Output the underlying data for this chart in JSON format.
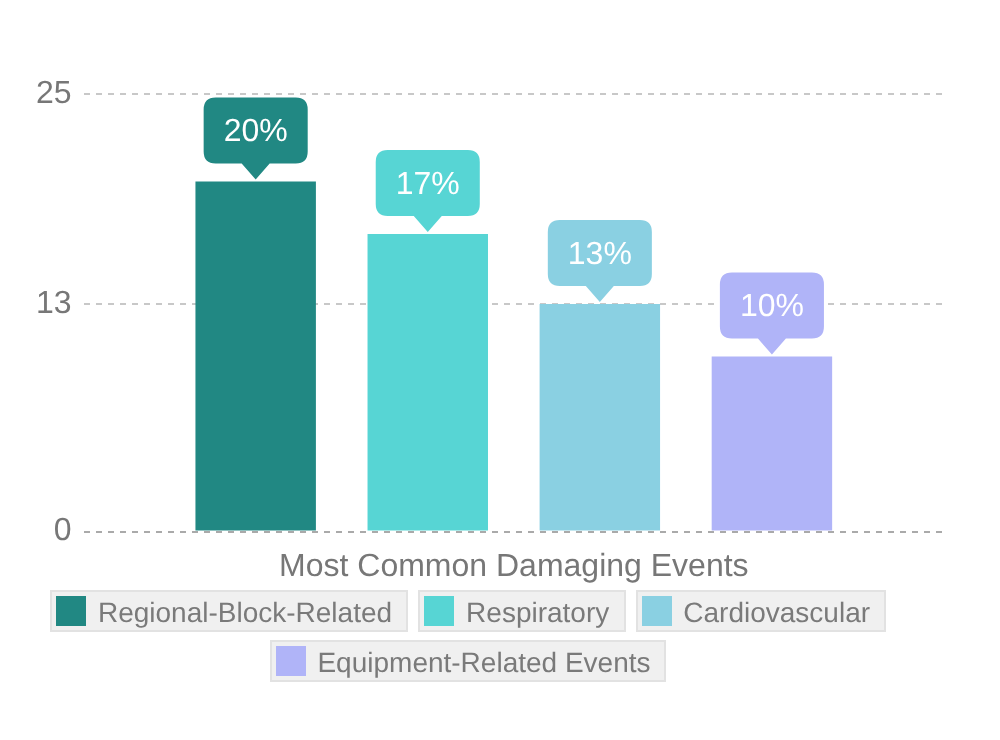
{
  "chart_data": {
    "type": "bar",
    "xlabel": "Most Common Damaging Events",
    "categories": [
      null
    ],
    "series": [
      {
        "name": "Regional-Block-Related",
        "color": "#218883",
        "values": [
          20
        ],
        "value_labels": [
          "20%"
        ]
      },
      {
        "name": "Respiratory",
        "color": "#57d5d4",
        "values": [
          17
        ],
        "value_labels": [
          "17%"
        ]
      },
      {
        "name": "Cardiovascular",
        "color": "#8ad0e2",
        "values": [
          13
        ],
        "value_labels": [
          "13%"
        ]
      },
      {
        "name": "Equipment-Related Events",
        "color": "#b0b4f8",
        "values": [
          10
        ],
        "value_labels": [
          "10%"
        ]
      }
    ],
    "ylim": [
      0,
      25
    ],
    "yticks": [
      0,
      13,
      25
    ],
    "grid": "y",
    "legend": "bottom"
  }
}
